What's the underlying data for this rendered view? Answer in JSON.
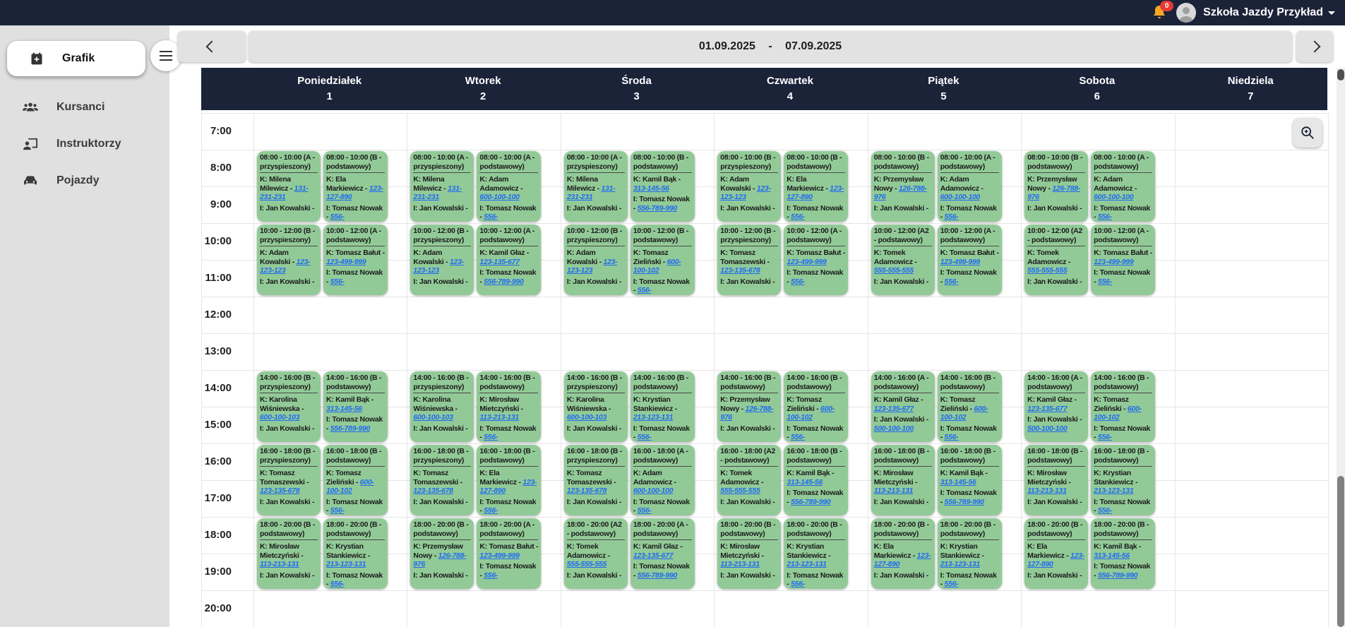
{
  "topbar": {
    "school_name": "Szkoła Jazdy Przykład",
    "notification_count": "0"
  },
  "sidebar": {
    "items": [
      {
        "label": "Grafik",
        "icon": "calendar-plus-icon",
        "active": true
      },
      {
        "label": "Kursanci",
        "icon": "people-icon",
        "active": false
      },
      {
        "label": "Instruktorzy",
        "icon": "instructor-icon",
        "active": false
      },
      {
        "label": "Pojazdy",
        "icon": "car-icon",
        "active": false
      }
    ]
  },
  "toolbar": {
    "date_range": "01.09.2025 - 07.09.2025"
  },
  "colors": {
    "navy": "#1b2339",
    "card_green": "#92ca97",
    "link_blue": "#1f6bf2",
    "bell_yellow": "#f9a825",
    "badge_red": "#e53935"
  },
  "calendar": {
    "student_prefix": "K:",
    "instructor_prefix": "I:",
    "hours": [
      "7:00",
      "8:00",
      "9:00",
      "10:00",
      "11:00",
      "12:00",
      "13:00",
      "14:00",
      "15:00",
      "16:00",
      "17:00",
      "18:00",
      "19:00",
      "20:00"
    ],
    "days": [
      {
        "name": "Poniedziałek",
        "num": "1",
        "events": [
          {
            "c": 0,
            "s": "08:00",
            "e": "10:00",
            "t": "A - przyspieszony",
            "k": "Milena Milewicz",
            "kt": "131-231-231",
            "i": "Jan Kowalski",
            "it": ""
          },
          {
            "c": 0,
            "s": "10:00",
            "e": "12:00",
            "t": "B - przyspieszony",
            "k": "Adam Kowalski",
            "kt": "123-123-123",
            "i": "Jan Kowalski",
            "it": ""
          },
          {
            "c": 0,
            "s": "14:00",
            "e": "16:00",
            "t": "B - przyspieszony",
            "k": "Karolina Wiśniewska",
            "kt": "600-100-103",
            "i": "Jan Kowalski",
            "it": ""
          },
          {
            "c": 0,
            "s": "16:00",
            "e": "18:00",
            "t": "B - przyspieszony",
            "k": "Tomasz Tomaszewski",
            "kt": "123-135-678",
            "i": "Jan Kowalski",
            "it": ""
          },
          {
            "c": 0,
            "s": "18:00",
            "e": "20:00",
            "t": "B - podstawowy",
            "k": "Mirosław Mietczyński",
            "kt": "113-213-131",
            "i": "Jan Kowalski",
            "it": ""
          },
          {
            "c": 1,
            "s": "08:00",
            "e": "10:00",
            "t": "B - podstawowy",
            "k": "Ela Markiewicz",
            "kt": "123-127-890",
            "i": "Tomasz Nowak",
            "it": "556-"
          },
          {
            "c": 1,
            "s": "10:00",
            "e": "12:00",
            "t": "A - podstawowy",
            "k": "Tomasz Bałut",
            "kt": "123-499-999",
            "i": "Tomasz Nowak",
            "it": "556-"
          },
          {
            "c": 1,
            "s": "14:00",
            "e": "16:00",
            "t": "B - podstawowy",
            "k": "Kamil Bąk",
            "kt": "313-145-56",
            "i": "Tomasz Nowak",
            "it": "556-789-990"
          },
          {
            "c": 1,
            "s": "16:00",
            "e": "18:00",
            "t": "B - podstawowy",
            "k": "Tomasz Zieliński",
            "kt": "600-100-102",
            "i": "Tomasz Nowak",
            "it": "556-"
          },
          {
            "c": 1,
            "s": "18:00",
            "e": "20:00",
            "t": "B - podstawowy",
            "k": "Krystian Stankiewicz",
            "kt": "213-123-131",
            "i": "Tomasz Nowak",
            "it": "556-"
          }
        ]
      },
      {
        "name": "Wtorek",
        "num": "2",
        "events": [
          {
            "c": 0,
            "s": "08:00",
            "e": "10:00",
            "t": "A - przyspieszony",
            "k": "Milena Milewicz",
            "kt": "131-231-231",
            "i": "Jan Kowalski",
            "it": ""
          },
          {
            "c": 0,
            "s": "10:00",
            "e": "12:00",
            "t": "B - przyspieszony",
            "k": "Adam Kowalski",
            "kt": "123-123-123",
            "i": "Jan Kowalski",
            "it": ""
          },
          {
            "c": 0,
            "s": "14:00",
            "e": "16:00",
            "t": "B - przyspieszony",
            "k": "Karolina Wiśniewska",
            "kt": "600-100-103",
            "i": "Jan Kowalski",
            "it": ""
          },
          {
            "c": 0,
            "s": "16:00",
            "e": "18:00",
            "t": "B - przyspieszony",
            "k": "Tomasz Tomaszewski",
            "kt": "123-135-678",
            "i": "Jan Kowalski",
            "it": ""
          },
          {
            "c": 0,
            "s": "18:00",
            "e": "20:00",
            "t": "B - podstawowy",
            "k": "Przemysław Nowy",
            "kt": "126-788-976",
            "i": "Jan Kowalski",
            "it": ""
          },
          {
            "c": 1,
            "s": "08:00",
            "e": "10:00",
            "t": "A - podstawowy",
            "k": "Adam Adamowicz",
            "kt": "600-100-100",
            "i": "Tomasz Nowak",
            "it": "556-"
          },
          {
            "c": 1,
            "s": "10:00",
            "e": "12:00",
            "t": "A - podstawowy",
            "k": "Kamil Głaz",
            "kt": "123-135-677",
            "i": "Tomasz Nowak",
            "it": "556-789-990"
          },
          {
            "c": 1,
            "s": "14:00",
            "e": "16:00",
            "t": "B - podstawowy",
            "k": "Mirosław Mietczyński",
            "kt": "113-213-131",
            "i": "Tomasz Nowak",
            "it": "556-"
          },
          {
            "c": 1,
            "s": "16:00",
            "e": "18:00",
            "t": "B - podstawowy",
            "k": "Ela Markiewicz",
            "kt": "123-127-890",
            "i": "Tomasz Nowak",
            "it": "556-"
          },
          {
            "c": 1,
            "s": "18:00",
            "e": "20:00",
            "t": "A - podstawowy",
            "k": "Tomasz Bałut",
            "kt": "123-499-999",
            "i": "Tomasz Nowak",
            "it": "556-"
          }
        ]
      },
      {
        "name": "Środa",
        "num": "3",
        "events": [
          {
            "c": 0,
            "s": "08:00",
            "e": "10:00",
            "t": "A - przyspieszony",
            "k": "Milena Milewicz",
            "kt": "131-231-231",
            "i": "Jan Kowalski",
            "it": ""
          },
          {
            "c": 0,
            "s": "10:00",
            "e": "12:00",
            "t": "B - przyspieszony",
            "k": "Adam Kowalski",
            "kt": "123-123-123",
            "i": "Jan Kowalski",
            "it": ""
          },
          {
            "c": 0,
            "s": "14:00",
            "e": "16:00",
            "t": "B - przyspieszony",
            "k": "Karolina Wiśniewska",
            "kt": "600-100-103",
            "i": "Jan Kowalski",
            "it": ""
          },
          {
            "c": 0,
            "s": "16:00",
            "e": "18:00",
            "t": "B - przyspieszony",
            "k": "Tomasz Tomaszewski",
            "kt": "123-135-678",
            "i": "Jan Kowalski",
            "it": ""
          },
          {
            "c": 0,
            "s": "18:00",
            "e": "20:00",
            "t": "A2 - podstawowy",
            "k": "Tomek Adamowicz",
            "kt": "555-555-555",
            "i": "Jan Kowalski",
            "it": ""
          },
          {
            "c": 1,
            "s": "08:00",
            "e": "10:00",
            "t": "B - podstawowy",
            "k": "Kamil Bąk",
            "kt": "313-145-56",
            "i": "Tomasz Nowak",
            "it": "556-789-990"
          },
          {
            "c": 1,
            "s": "10:00",
            "e": "12:00",
            "t": "B - podstawowy",
            "k": "Tomasz Zieliński",
            "kt": "600-100-102",
            "i": "Tomasz Nowak",
            "it": "556-"
          },
          {
            "c": 1,
            "s": "14:00",
            "e": "16:00",
            "t": "B - podstawowy",
            "k": "Krystian Stankiewicz",
            "kt": "213-123-131",
            "i": "Tomasz Nowak",
            "it": "556-"
          },
          {
            "c": 1,
            "s": "16:00",
            "e": "18:00",
            "t": "A - podstawowy",
            "k": "Adam Adamowicz",
            "kt": "600-100-100",
            "i": "Tomasz Nowak",
            "it": "556-"
          },
          {
            "c": 1,
            "s": "18:00",
            "e": "20:00",
            "t": "A - podstawowy",
            "k": "Kamil Głaz",
            "kt": "123-135-677",
            "i": "Tomasz Nowak",
            "it": "556-789-990"
          }
        ]
      },
      {
        "name": "Czwartek",
        "num": "4",
        "events": [
          {
            "c": 0,
            "s": "08:00",
            "e": "10:00",
            "t": "B - przyspieszony",
            "k": "Adam Kowalski",
            "kt": "123-123-123",
            "i": "Jan Kowalski",
            "it": ""
          },
          {
            "c": 0,
            "s": "10:00",
            "e": "12:00",
            "t": "B - przyspieszony",
            "k": "Tomasz Tomaszewski",
            "kt": "123-135-678",
            "i": "Jan Kowalski",
            "it": ""
          },
          {
            "c": 0,
            "s": "14:00",
            "e": "16:00",
            "t": "B - podstawowy",
            "k": "Przemysław Nowy",
            "kt": "126-788-976",
            "i": "Jan Kowalski",
            "it": ""
          },
          {
            "c": 0,
            "s": "16:00",
            "e": "18:00",
            "t": "A2 - podstawowy",
            "k": "Tomek Adamowicz",
            "kt": "555-555-555",
            "i": "Jan Kowalski",
            "it": ""
          },
          {
            "c": 0,
            "s": "18:00",
            "e": "20:00",
            "t": "B - podstawowy",
            "k": "Mirosław Mietczyński",
            "kt": "113-213-131",
            "i": "Jan Kowalski",
            "it": ""
          },
          {
            "c": 1,
            "s": "08:00",
            "e": "10:00",
            "t": "B - podstawowy",
            "k": "Ela Markiewicz",
            "kt": "123-127-890",
            "i": "Tomasz Nowak",
            "it": "556-"
          },
          {
            "c": 1,
            "s": "10:00",
            "e": "12:00",
            "t": "A - podstawowy",
            "k": "Tomasz Bałut",
            "kt": "123-499-999",
            "i": "Tomasz Nowak",
            "it": "556-"
          },
          {
            "c": 1,
            "s": "14:00",
            "e": "16:00",
            "t": "B - podstawowy",
            "k": "Tomasz Zieliński",
            "kt": "600-100-102",
            "i": "Tomasz Nowak",
            "it": "556-"
          },
          {
            "c": 1,
            "s": "16:00",
            "e": "18:00",
            "t": "B - podstawowy",
            "k": "Kamil Bąk",
            "kt": "313-145-56",
            "i": "Tomasz Nowak",
            "it": "556-789-990"
          },
          {
            "c": 1,
            "s": "18:00",
            "e": "20:00",
            "t": "B - podstawowy",
            "k": "Krystian Stankiewicz",
            "kt": "213-123-131",
            "i": "Tomasz Nowak",
            "it": "556-"
          }
        ]
      },
      {
        "name": "Piątek",
        "num": "5",
        "events": [
          {
            "c": 0,
            "s": "08:00",
            "e": "10:00",
            "t": "B - podstawowy",
            "k": "Przemysław Nowy",
            "kt": "126-788-976",
            "i": "Jan Kowalski",
            "it": ""
          },
          {
            "c": 0,
            "s": "10:00",
            "e": "12:00",
            "t": "A2 - podstawowy",
            "k": "Tomek Adamowicz",
            "kt": "555-555-555",
            "i": "Jan Kowalski",
            "it": ""
          },
          {
            "c": 0,
            "s": "14:00",
            "e": "16:00",
            "t": "A - podstawowy",
            "k": "Kamil Głaz",
            "kt": "123-135-677",
            "i": "Jan Kowalski",
            "it": "500-100-100"
          },
          {
            "c": 0,
            "s": "16:00",
            "e": "18:00",
            "t": "B - podstawowy",
            "k": "Mirosław Mietczyński",
            "kt": "113-213-131",
            "i": "Jan Kowalski",
            "it": ""
          },
          {
            "c": 0,
            "s": "18:00",
            "e": "20:00",
            "t": "B - podstawowy",
            "k": "Ela Markiewicz",
            "kt": "123-127-890",
            "i": "Jan Kowalski",
            "it": ""
          },
          {
            "c": 1,
            "s": "08:00",
            "e": "10:00",
            "t": "A - podstawowy",
            "k": "Adam Adamowicz",
            "kt": "600-100-100",
            "i": "Tomasz Nowak",
            "it": "556-"
          },
          {
            "c": 1,
            "s": "10:00",
            "e": "12:00",
            "t": "A - podstawowy",
            "k": "Tomasz Bałut",
            "kt": "123-499-999",
            "i": "Tomasz Nowak",
            "it": "556-"
          },
          {
            "c": 1,
            "s": "14:00",
            "e": "16:00",
            "t": "B - podstawowy",
            "k": "Tomasz Zieliński",
            "kt": "600-100-102",
            "i": "Tomasz Nowak",
            "it": "556-"
          },
          {
            "c": 1,
            "s": "16:00",
            "e": "18:00",
            "t": "B - podstawowy",
            "k": "Kamil Bąk",
            "kt": "313-145-56",
            "i": "Tomasz Nowak",
            "it": "556-789-990"
          },
          {
            "c": 1,
            "s": "18:00",
            "e": "20:00",
            "t": "B - podstawowy",
            "k": "Krystian Stankiewicz",
            "kt": "213-123-131",
            "i": "Tomasz Nowak",
            "it": "556-"
          }
        ]
      },
      {
        "name": "Sobota",
        "num": "6",
        "events": [
          {
            "c": 0,
            "s": "08:00",
            "e": "10:00",
            "t": "B - podstawowy",
            "k": "Przemysław Nowy",
            "kt": "126-788-976",
            "i": "Jan Kowalski",
            "it": ""
          },
          {
            "c": 0,
            "s": "10:00",
            "e": "12:00",
            "t": "A2 - podstawowy",
            "k": "Tomek Adamowicz",
            "kt": "555-555-555",
            "i": "Jan Kowalski",
            "it": ""
          },
          {
            "c": 0,
            "s": "14:00",
            "e": "16:00",
            "t": "A - podstawowy",
            "k": "Kamil Głaz",
            "kt": "123-135-677",
            "i": "Jan Kowalski",
            "it": "500-100-100"
          },
          {
            "c": 0,
            "s": "16:00",
            "e": "18:00",
            "t": "B - podstawowy",
            "k": "Mirosław Mietczyński",
            "kt": "113-213-131",
            "i": "Jan Kowalski",
            "it": ""
          },
          {
            "c": 0,
            "s": "18:00",
            "e": "20:00",
            "t": "B - podstawowy",
            "k": "Ela Markiewicz",
            "kt": "123-127-890",
            "i": "Jan Kowalski",
            "it": ""
          },
          {
            "c": 1,
            "s": "08:00",
            "e": "10:00",
            "t": "A - podstawowy",
            "k": "Adam Adamowicz",
            "kt": "600-100-100",
            "i": "Tomasz Nowak",
            "it": "556-"
          },
          {
            "c": 1,
            "s": "10:00",
            "e": "12:00",
            "t": "A - podstawowy",
            "k": "Tomasz Bałut",
            "kt": "123-499-999",
            "i": "Tomasz Nowak",
            "it": "556-"
          },
          {
            "c": 1,
            "s": "14:00",
            "e": "16:00",
            "t": "B - podstawowy",
            "k": "Tomasz Zieliński",
            "kt": "600-100-102",
            "i": "Tomasz Nowak",
            "it": "556-"
          },
          {
            "c": 1,
            "s": "16:00",
            "e": "18:00",
            "t": "B - podstawowy",
            "k": "Krystian Stankiewicz",
            "kt": "213-123-131",
            "i": "Tomasz Nowak",
            "it": "556-"
          },
          {
            "c": 1,
            "s": "18:00",
            "e": "20:00",
            "t": "B - podstawowy",
            "k": "Kamil Bąk",
            "kt": "313-145-56",
            "i": "Tomasz Nowak",
            "it": "556-789-990"
          }
        ]
      },
      {
        "name": "Niedziela",
        "num": "7",
        "events": []
      }
    ]
  }
}
